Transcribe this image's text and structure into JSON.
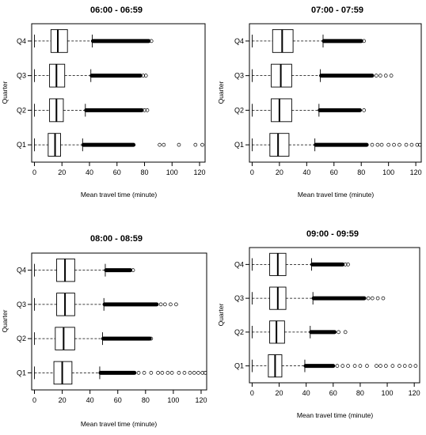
{
  "chart_data": [
    {
      "type": "boxplot",
      "title": "06:00 - 06:59",
      "xlabel": "Mean travel time (minute)",
      "ylabel": "Quarter",
      "xlim": [
        -2,
        124
      ],
      "x_ticks": [
        0,
        20,
        40,
        60,
        80,
        100,
        120
      ],
      "grid": false,
      "categories": [
        "Q1",
        "Q2",
        "Q3",
        "Q4"
      ],
      "boxes": [
        {
          "name": "Q1",
          "min": 0,
          "q1": 10,
          "median": 15,
          "q3": 19,
          "whisker_high": 35,
          "dense_outliers_to": 72,
          "sparse_outliers": [
            91,
            94,
            105,
            117,
            122
          ]
        },
        {
          "name": "Q2",
          "min": 0,
          "q1": 11,
          "median": 16,
          "q3": 21,
          "whisker_high": 37,
          "dense_outliers_to": 78,
          "sparse_outliers": [
            80,
            82
          ]
        },
        {
          "name": "Q3",
          "min": 0,
          "q1": 11,
          "median": 16,
          "q3": 22,
          "whisker_high": 41,
          "dense_outliers_to": 77,
          "sparse_outliers": [
            79,
            81
          ]
        },
        {
          "name": "Q4",
          "min": 0,
          "q1": 12,
          "median": 17,
          "q3": 24,
          "whisker_high": 42,
          "dense_outliers_to": 83,
          "sparse_outliers": [
            85
          ]
        }
      ]
    },
    {
      "type": "boxplot",
      "title": "07:00 - 07:59",
      "xlabel": "Mean travel time (minute)",
      "ylabel": "Quarter",
      "xlim": [
        -2,
        124
      ],
      "x_ticks": [
        0,
        20,
        40,
        60,
        80,
        100,
        120
      ],
      "grid": false,
      "categories": [
        "Q1",
        "Q2",
        "Q3",
        "Q4"
      ],
      "boxes": [
        {
          "name": "Q1",
          "min": 0,
          "q1": 13,
          "median": 19,
          "q3": 27,
          "whisker_high": 46,
          "dense_outliers_to": 84,
          "sparse_outliers": [
            88,
            92,
            95,
            100,
            104,
            108,
            113,
            117,
            121,
            123
          ]
        },
        {
          "name": "Q2",
          "min": 0,
          "q1": 14,
          "median": 20,
          "q3": 29,
          "whisker_high": 49,
          "dense_outliers_to": 79,
          "sparse_outliers": [
            82
          ]
        },
        {
          "name": "Q3",
          "min": 0,
          "q1": 14,
          "median": 21,
          "q3": 29,
          "whisker_high": 50,
          "dense_outliers_to": 88,
          "sparse_outliers": [
            91,
            94,
            98,
            102
          ]
        },
        {
          "name": "Q4",
          "min": 0,
          "q1": 15,
          "median": 22,
          "q3": 30,
          "whisker_high": 52,
          "dense_outliers_to": 80,
          "sparse_outliers": [
            82
          ]
        }
      ]
    },
    {
      "type": "boxplot",
      "title": "08:00 - 08:59",
      "xlabel": "Mean travel time (minute)",
      "ylabel": "Quarter",
      "xlim": [
        -2,
        124
      ],
      "x_ticks": [
        0,
        20,
        40,
        60,
        80,
        100,
        120
      ],
      "grid": false,
      "categories": [
        "Q1",
        "Q2",
        "Q3",
        "Q4"
      ],
      "boxes": [
        {
          "name": "Q1",
          "min": 0,
          "q1": 14,
          "median": 20,
          "q3": 27,
          "whisker_high": 47,
          "dense_outliers_to": 72,
          "sparse_outliers": [
            75,
            79,
            84,
            89,
            92,
            96,
            99,
            104,
            108,
            112,
            115,
            118,
            121,
            123
          ]
        },
        {
          "name": "Q2",
          "min": 0,
          "q1": 15,
          "median": 21,
          "q3": 29,
          "whisker_high": 49,
          "dense_outliers_to": 83,
          "sparse_outliers": [
            84
          ]
        },
        {
          "name": "Q3",
          "min": 0,
          "q1": 16,
          "median": 22,
          "q3": 29,
          "whisker_high": 50,
          "dense_outliers_to": 88,
          "sparse_outliers": [
            91,
            94,
            98,
            102
          ]
        },
        {
          "name": "Q4",
          "min": 0,
          "q1": 16,
          "median": 22,
          "q3": 29,
          "whisker_high": 51,
          "dense_outliers_to": 69,
          "sparse_outliers": [
            71
          ]
        }
      ]
    },
    {
      "type": "boxplot",
      "title": "09:00 - 09:59",
      "xlabel": "Mean travel time (minute)",
      "ylabel": "Quarter",
      "xlim": [
        -2,
        124
      ],
      "x_ticks": [
        0,
        20,
        40,
        60,
        80,
        100,
        120
      ],
      "grid": false,
      "categories": [
        "Q1",
        "Q2",
        "Q3",
        "Q4"
      ],
      "boxes": [
        {
          "name": "Q1",
          "min": 0,
          "q1": 12,
          "median": 17,
          "q3": 22,
          "whisker_high": 39,
          "dense_outliers_to": 60,
          "sparse_outliers": [
            63,
            67,
            71,
            76,
            80,
            85,
            92,
            95,
            99,
            104,
            109,
            113,
            117,
            121
          ]
        },
        {
          "name": "Q2",
          "min": 0,
          "q1": 13,
          "median": 18,
          "q3": 24,
          "whisker_high": 43,
          "dense_outliers_to": 61,
          "sparse_outliers": [
            64,
            69
          ]
        },
        {
          "name": "Q3",
          "min": 0,
          "q1": 13,
          "median": 19,
          "q3": 25,
          "whisker_high": 45,
          "dense_outliers_to": 83,
          "sparse_outliers": [
            86,
            89,
            93,
            97
          ]
        },
        {
          "name": "Q4",
          "min": 0,
          "q1": 13,
          "median": 19,
          "q3": 25,
          "whisker_high": 44,
          "dense_outliers_to": 67,
          "sparse_outliers": [
            69,
            71
          ]
        }
      ]
    }
  ]
}
